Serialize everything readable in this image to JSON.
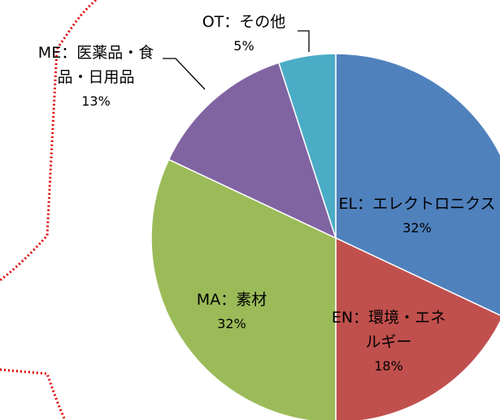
{
  "chart_data": {
    "type": "pie",
    "categories": [
      "EL：エレクトロニクス",
      "EN：環境・エネルギー",
      "MA：素材",
      "ME：医薬品・食品・日用品",
      "OT：その他"
    ],
    "values": [
      32,
      18,
      32,
      13,
      5
    ],
    "value_labels": [
      "32%",
      "18%",
      "32%",
      "13%",
      "5%"
    ],
    "colors": [
      "#4f81bd",
      "#c0504d",
      "#9bbb59",
      "#8064a2",
      "#4bacc6"
    ]
  }
}
